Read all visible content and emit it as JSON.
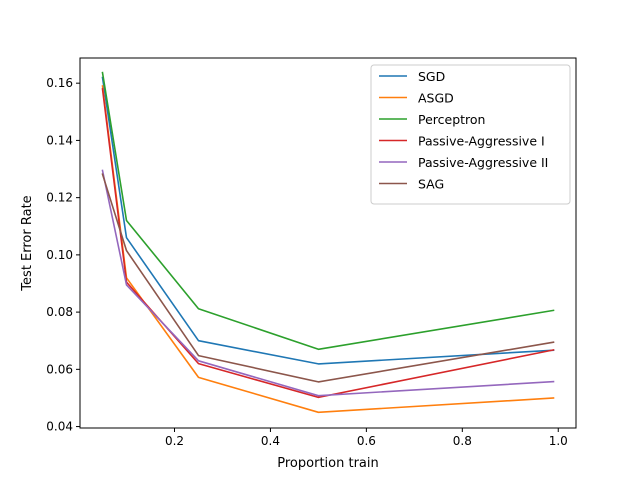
{
  "chart_data": {
    "type": "line",
    "title": "",
    "xlabel": "Proportion train",
    "ylabel": "Test Error Rate",
    "xlim": [
      0.003,
      1.037
    ],
    "ylim": [
      0.0395,
      0.1688
    ],
    "x_ticks": [
      0.2,
      0.4,
      0.6,
      0.8,
      1.0
    ],
    "x_tick_labels": [
      "0.2",
      "0.4",
      "0.6",
      "0.8",
      "1.0"
    ],
    "y_ticks": [
      0.04,
      0.06,
      0.08,
      0.1,
      0.12,
      0.14,
      0.16
    ],
    "y_tick_labels": [
      "0.04",
      "0.06",
      "0.08",
      "0.10",
      "0.12",
      "0.14",
      "0.16"
    ],
    "grid": false,
    "legend_position": "upper right",
    "x": [
      0.05,
      0.1,
      0.25,
      0.5,
      0.99
    ],
    "series": [
      {
        "name": "SGD",
        "color": "#1f77b4",
        "values": [
          0.162,
          0.106,
          0.07,
          0.0619,
          0.0667
        ]
      },
      {
        "name": "ASGD",
        "color": "#ff7f0e",
        "values": [
          0.159,
          0.092,
          0.0572,
          0.045,
          0.05
        ]
      },
      {
        "name": "Perceptron",
        "color": "#2ca02c",
        "values": [
          0.1637,
          0.112,
          0.0812,
          0.067,
          0.0806
        ]
      },
      {
        "name": "Passive-Aggressive I",
        "color": "#d62728",
        "values": [
          0.158,
          0.0905,
          0.062,
          0.0502,
          0.0668
        ]
      },
      {
        "name": "Passive-Aggressive II",
        "color": "#9467bd",
        "values": [
          0.1295,
          0.0895,
          0.063,
          0.0508,
          0.0557
        ]
      },
      {
        "name": "SAG",
        "color": "#8c564b",
        "values": [
          0.1282,
          0.1015,
          0.0648,
          0.0556,
          0.0695
        ]
      }
    ]
  }
}
